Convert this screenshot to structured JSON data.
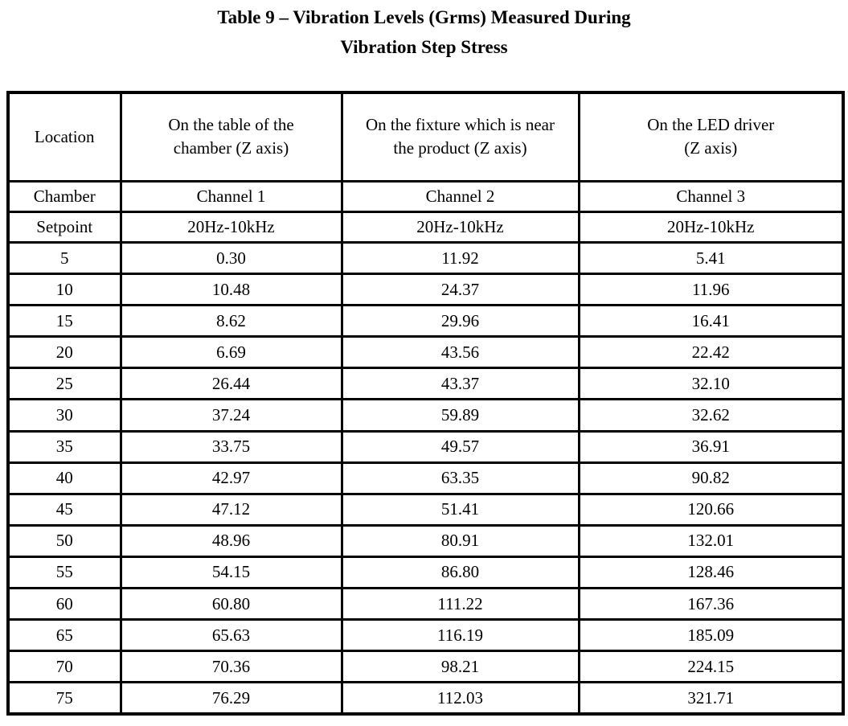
{
  "title": {
    "line1": "Table 9 – Vibration Levels (Grms) Measured During",
    "line2": "Vibration Step Stress"
  },
  "table": {
    "columns": {
      "location": "Location",
      "col1_lines": [
        "On the table of the",
        "chamber (Z axis)"
      ],
      "col2_lines": [
        "On the fixture which is near",
        "the product (Z axis)"
      ],
      "col3_lines": [
        "On the LED driver",
        "(Z axis)"
      ]
    },
    "channel_row": {
      "label": "Chamber",
      "c1": "Channel 1",
      "c2": "Channel 2",
      "c3": "Channel 3"
    },
    "setpoint_row": {
      "label": "Setpoint",
      "c1": "20Hz-10kHz",
      "c2": "20Hz-10kHz",
      "c3": "20Hz-10kHz"
    },
    "rows": [
      [
        "5",
        "0.30",
        "11.92",
        "5.41"
      ],
      [
        "10",
        "10.48",
        "24.37",
        "11.96"
      ],
      [
        "15",
        "8.62",
        "29.96",
        "16.41"
      ],
      [
        "20",
        "6.69",
        "43.56",
        "22.42"
      ],
      [
        "25",
        "26.44",
        "43.37",
        "32.10"
      ],
      [
        "30",
        "37.24",
        "59.89",
        "32.62"
      ],
      [
        "35",
        "33.75",
        "49.57",
        "36.91"
      ],
      [
        "40",
        "42.97",
        "63.35",
        "90.82"
      ],
      [
        "45",
        "47.12",
        "51.41",
        "120.66"
      ],
      [
        "50",
        "48.96",
        "80.91",
        "132.01"
      ],
      [
        "55",
        "54.15",
        "86.80",
        "128.46"
      ],
      [
        "60",
        "60.80",
        "111.22",
        "167.36"
      ],
      [
        "65",
        "65.63",
        "116.19",
        "185.09"
      ],
      [
        "70",
        "70.36",
        "98.21",
        "224.15"
      ],
      [
        "75",
        "76.29",
        "112.03",
        "321.71"
      ]
    ]
  }
}
